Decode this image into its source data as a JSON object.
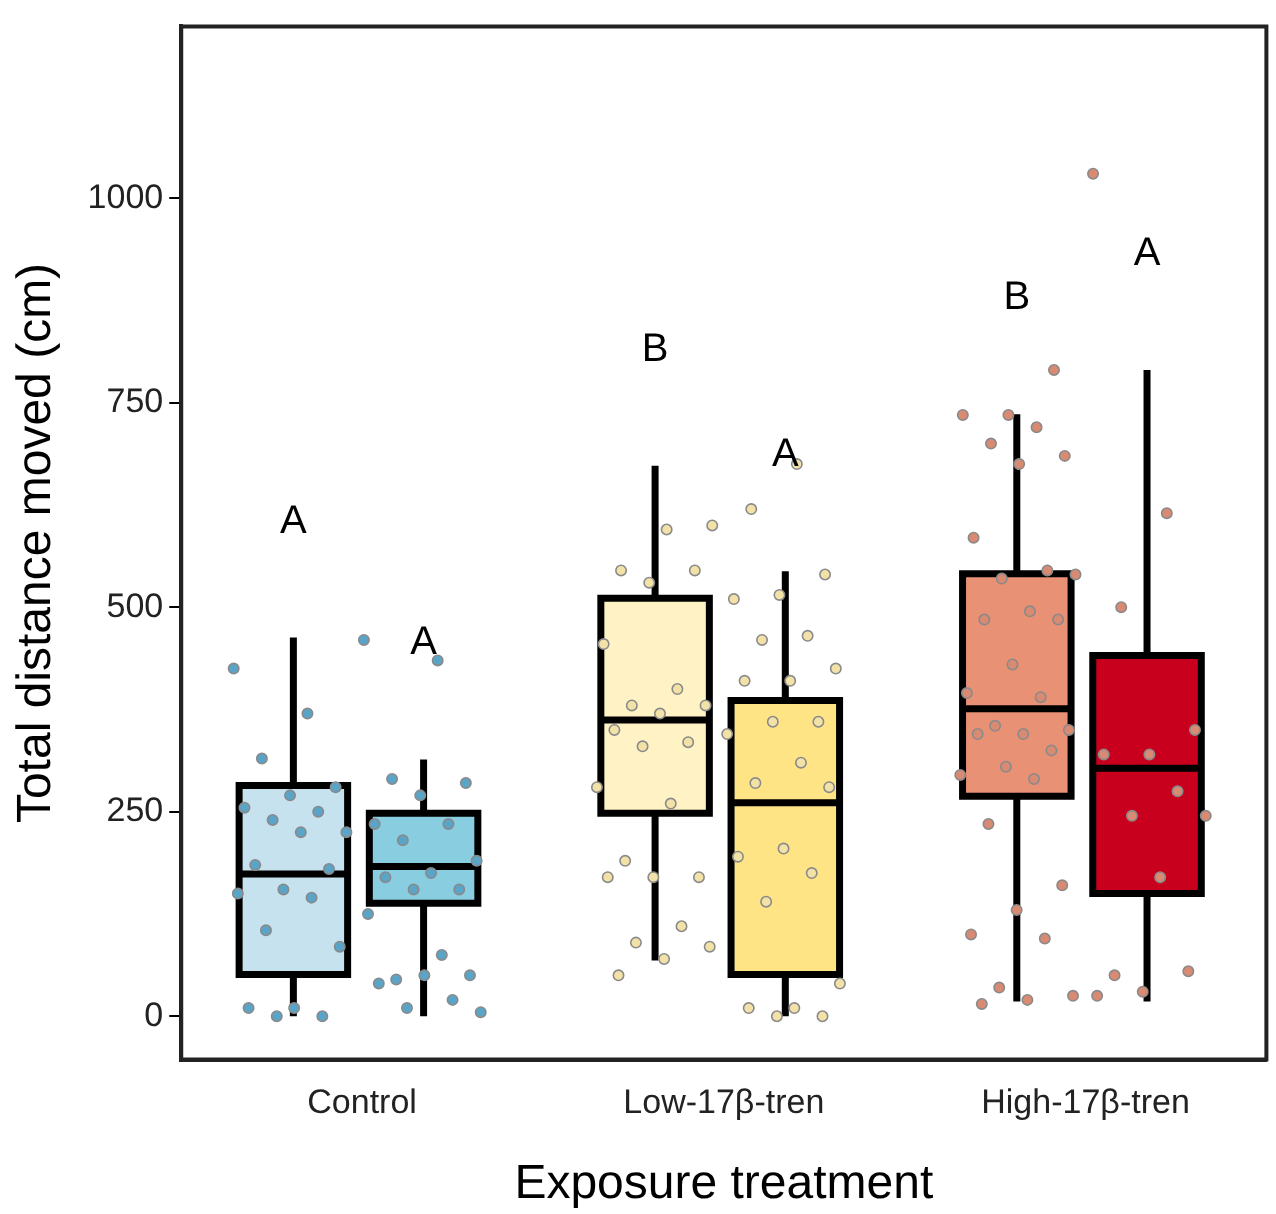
{
  "chart_data": {
    "type": "box",
    "xlabel": "Exposure treatment",
    "ylabel": "Total distance moved (cm)",
    "categories": [
      "Control",
      "Low-17β-tren",
      "High-17β-tren"
    ],
    "ylim": [
      -53,
      1210
    ],
    "yticks": [
      0,
      250,
      500,
      750,
      1000
    ],
    "grid": false,
    "legend": false,
    "series": [
      {
        "colors": [
          "#c6e2ef",
          "#fff2c4",
          "#e99174"
        ],
        "boxes": [
          {
            "low": 0,
            "q1": 51,
            "median": 174,
            "q3": 282,
            "high": 463
          },
          {
            "low": 68,
            "q1": 248,
            "median": 362,
            "q3": 511,
            "high": 673
          },
          {
            "low": 18,
            "q1": 269,
            "median": 376,
            "q3": 541,
            "high": 736
          }
        ]
      },
      {
        "colors": [
          "#88cde0",
          "#ffe485",
          "#c8001e"
        ],
        "boxes": [
          {
            "low": 0,
            "q1": 138,
            "median": 183,
            "q3": 248,
            "high": 314
          },
          {
            "low": 0,
            "q1": 51,
            "median": 261,
            "q3": 386,
            "high": 544
          },
          {
            "low": 18,
            "q1": 150,
            "median": 303,
            "q3": 441,
            "high": 790
          }
        ]
      },
      {
        "type": "scatter",
        "x": [
          "Control",
          "Control",
          "Control",
          "Control",
          "Control",
          "Control",
          "Control",
          "Control",
          "Control",
          "Control",
          "Control",
          "Control",
          "Control",
          "Control",
          "Control",
          "Control",
          "Control",
          "Control",
          "Control",
          "Control",
          "Control",
          "Low-17β-tren",
          "Low-17β-tren",
          "Low-17β-tren",
          "Low-17β-tren",
          "Low-17β-tren",
          "Low-17β-tren",
          "Low-17β-tren",
          "Low-17β-tren",
          "Low-17β-tren",
          "Low-17β-tren",
          "Low-17β-tren",
          "Low-17β-tren",
          "Low-17β-tren",
          "Low-17β-tren",
          "Low-17β-tren",
          "Low-17β-tren",
          "Low-17β-tren",
          "Low-17β-tren",
          "Low-17β-tren",
          "Low-17β-tren",
          "Low-17β-tren",
          "Low-17β-tren",
          "Low-17β-tren",
          "Low-17β-tren",
          "High-17β-tren",
          "High-17β-tren",
          "High-17β-tren",
          "High-17β-tren",
          "High-17β-tren",
          "High-17β-tren",
          "High-17β-tren",
          "High-17β-tren",
          "High-17β-tren",
          "High-17β-tren",
          "High-17β-tren",
          "High-17β-tren",
          "High-17β-tren",
          "High-17β-tren",
          "High-17β-tren",
          "High-17β-tren",
          "High-17β-tren",
          "High-17β-tren",
          "High-17β-tren",
          "High-17β-tren",
          "High-17β-tren",
          "High-17β-tren",
          "High-17β-tren",
          "High-17β-tren",
          "High-17β-tren",
          "High-17β-tren",
          "High-17β-tren",
          "High-17β-tren",
          "High-17β-tren",
          "High-17β-tren",
          "High-17β-tren",
          "High-17β-tren",
          "High-17β-tren",
          "High-17β-tren"
        ],
        "values": [
          425,
          370,
          315,
          280,
          270,
          255,
          250,
          240,
          225,
          225,
          185,
          180,
          155,
          150,
          145,
          105,
          85,
          10,
          10,
          0,
          0,
          600,
          595,
          545,
          545,
          530,
          455,
          400,
          380,
          380,
          370,
          350,
          335,
          330,
          280,
          260,
          190,
          170,
          170,
          170,
          110,
          90,
          85,
          70,
          50,
          790,
          735,
          735,
          720,
          700,
          685,
          675,
          585,
          545,
          535,
          540,
          495,
          485,
          485,
          430,
          395,
          390,
          355,
          350,
          345,
          345,
          325,
          305,
          295,
          290,
          235,
          160,
          130,
          100,
          95,
          35,
          25,
          20,
          15
        ],
        "colors": [
          "#5aa4c8",
          "#5aa4c8",
          "#5aa4c8",
          "#5aa4c8",
          "#5aa4c8",
          "#5aa4c8",
          "#5aa4c8",
          "#5aa4c8",
          "#5aa4c8",
          "#5aa4c8",
          "#5aa4c8",
          "#5aa4c8",
          "#5aa4c8",
          "#5aa4c8",
          "#5aa4c8",
          "#5aa4c8",
          "#5aa4c8",
          "#5aa4c8",
          "#5aa4c8",
          "#5aa4c8",
          "#5aa4c8",
          "#f3e2a8",
          "#f3e2a8",
          "#f3e2a8",
          "#f3e2a8",
          "#f3e2a8",
          "#f3e2a8",
          "#f3e2a8",
          "#f3e2a8",
          "#f3e2a8",
          "#f3e2a8",
          "#f3e2a8",
          "#f3e2a8",
          "#f3e2a8",
          "#f3e2a8",
          "#f3e2a8",
          "#f3e2a8",
          "#f3e2a8",
          "#f3e2a8",
          "#f3e2a8",
          "#f3e2a8",
          "#f3e2a8",
          "#f3e2a8",
          "#f3e2a8",
          "#f3e2a8",
          "#d98a72",
          "#d98a72",
          "#d98a72",
          "#d98a72",
          "#d98a72",
          "#d98a72",
          "#d98a72",
          "#d98a72",
          "#d98a72",
          "#d98a72",
          "#d98a72",
          "#d98a72",
          "#d98a72",
          "#d98a72",
          "#d98a72",
          "#d98a72",
          "#d98a72",
          "#d98a72",
          "#d98a72",
          "#d98a72",
          "#d98a72",
          "#d98a72",
          "#d98a72",
          "#d98a72",
          "#d98a72",
          "#d98a72",
          "#d98a72",
          "#d98a72",
          "#d98a72",
          "#d98a72",
          "#d98a72",
          "#d98a72",
          "#d98a72",
          "#d98a72"
        ]
      },
      {
        "type": "scatter",
        "x": [
          "Control",
          "Control",
          "Control",
          "Control",
          "Control",
          "Control",
          "Control",
          "Control",
          "Control",
          "Control",
          "Control",
          "Control",
          "Control",
          "Control",
          "Control",
          "Control",
          "Control",
          "Control",
          "Control",
          "Control",
          "Control",
          "Control",
          "Low-17β-tren",
          "Low-17β-tren",
          "Low-17β-tren",
          "Low-17β-tren",
          "Low-17β-tren",
          "Low-17β-tren",
          "Low-17β-tren",
          "Low-17β-tren",
          "Low-17β-tren",
          "Low-17β-tren",
          "Low-17β-tren",
          "Low-17β-tren",
          "Low-17β-tren",
          "Low-17β-tren",
          "Low-17β-tren",
          "Low-17β-tren",
          "Low-17β-tren",
          "Low-17β-tren",
          "Low-17β-tren",
          "Low-17β-tren",
          "Low-17β-tren",
          "Low-17β-tren",
          "Low-17β-tren",
          "Low-17β-tren",
          "Low-17β-tren",
          "High-17β-tren",
          "High-17β-tren",
          "High-17β-tren",
          "High-17β-tren",
          "High-17β-tren",
          "High-17β-tren",
          "High-17β-tren",
          "High-17β-tren",
          "High-17β-tren",
          "High-17β-tren",
          "High-17β-tren",
          "High-17β-tren",
          "High-17β-tren",
          "High-17β-tren"
        ],
        "values": [
          460,
          435,
          290,
          285,
          270,
          235,
          235,
          215,
          190,
          175,
          170,
          155,
          155,
          125,
          75,
          45,
          50,
          50,
          40,
          20,
          10,
          5,
          675,
          620,
          540,
          515,
          510,
          465,
          460,
          425,
          410,
          410,
          360,
          360,
          345,
          310,
          285,
          280,
          205,
          195,
          175,
          140,
          40,
          10,
          10,
          0,
          0,
          1030,
          615,
          500,
          350,
          320,
          320,
          275,
          245,
          245,
          170,
          50,
          55,
          30,
          25
        ],
        "colors": [
          "#5aa4c8",
          "#5aa4c8",
          "#5aa4c8",
          "#5aa4c8",
          "#5aa4c8",
          "#5aa4c8",
          "#5aa4c8",
          "#5aa4c8",
          "#5aa4c8",
          "#5aa4c8",
          "#5aa4c8",
          "#5aa4c8",
          "#5aa4c8",
          "#5aa4c8",
          "#5aa4c8",
          "#5aa4c8",
          "#5aa4c8",
          "#5aa4c8",
          "#5aa4c8",
          "#5aa4c8",
          "#5aa4c8",
          "#5aa4c8",
          "#f3e2a8",
          "#f3e2a8",
          "#f3e2a8",
          "#f3e2a8",
          "#f3e2a8",
          "#f3e2a8",
          "#f3e2a8",
          "#f3e2a8",
          "#f3e2a8",
          "#f3e2a8",
          "#f3e2a8",
          "#f3e2a8",
          "#f3e2a8",
          "#f3e2a8",
          "#f3e2a8",
          "#f3e2a8",
          "#f3e2a8",
          "#f3e2a8",
          "#f3e2a8",
          "#f3e2a8",
          "#f3e2a8",
          "#f3e2a8",
          "#f3e2a8",
          "#f3e2a8",
          "#f3e2a8",
          "#d98a72",
          "#d98a72",
          "#d98a72",
          "#d98a72",
          "#d98a72",
          "#d98a72",
          "#d98a72",
          "#d98a72",
          "#d98a72",
          "#d98a72",
          "#d98a72",
          "#d98a72",
          "#d98a72",
          "#d98a72"
        ]
      }
    ],
    "annotations": [
      "A",
      "A",
      "B",
      "A",
      "B",
      "A"
    ]
  }
}
